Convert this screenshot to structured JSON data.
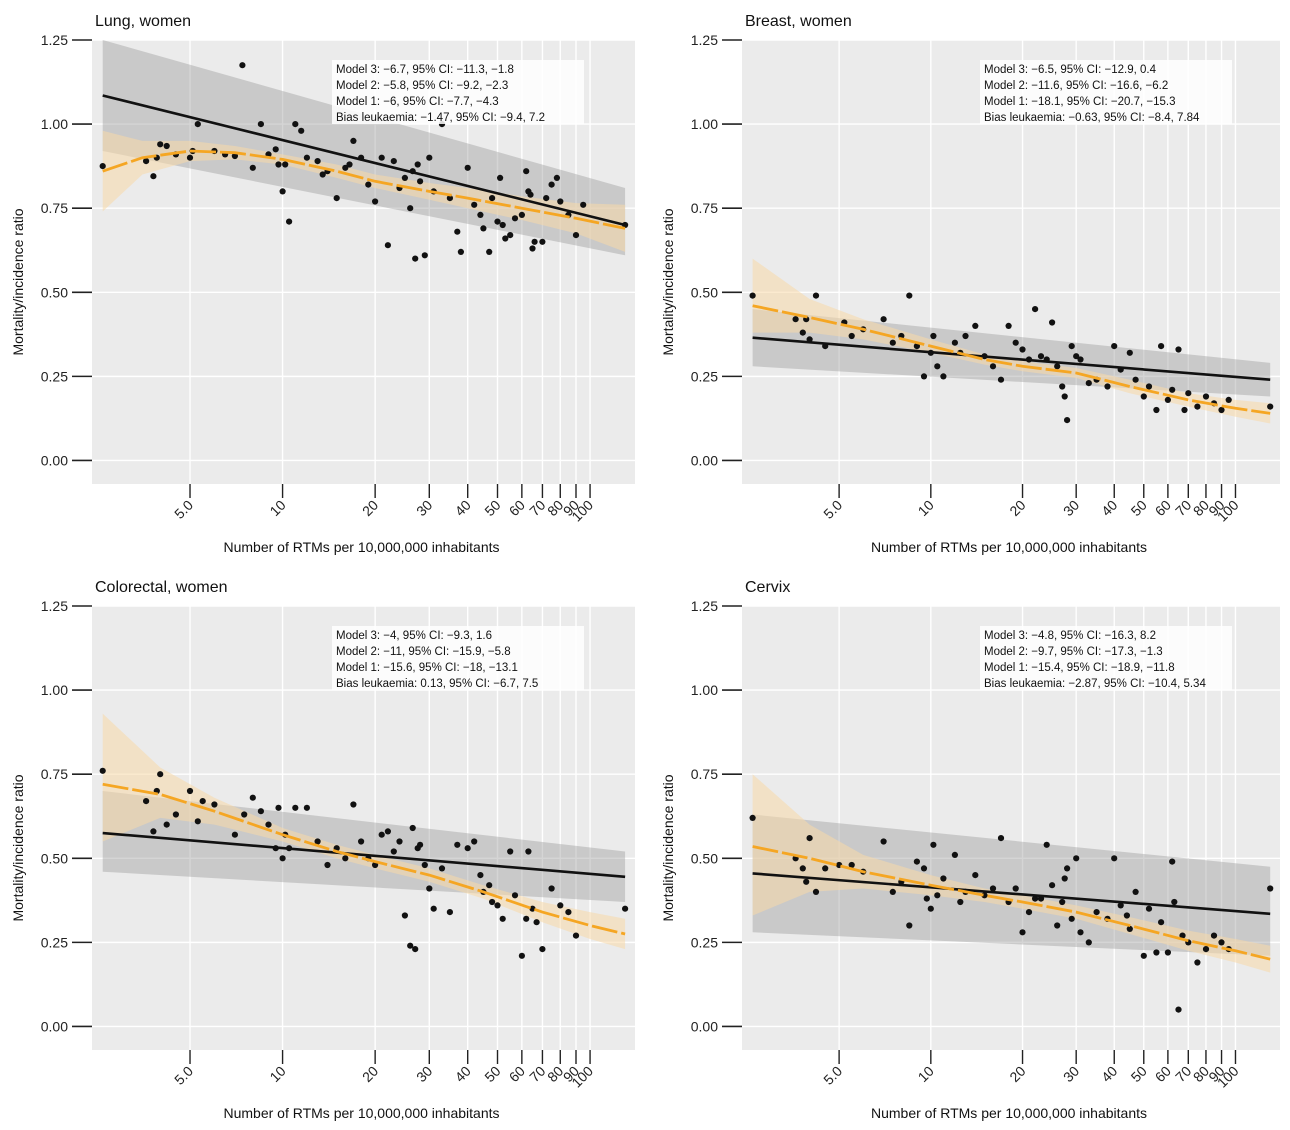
{
  "chart_data": [
    {
      "type": "scatter",
      "title": "Lung, women",
      "xlabel": "Number of RTMs per 10,000,000 inhabitants",
      "ylabel": "Mortality/incidence ratio",
      "x_scale": "log",
      "xlim": [
        2.4,
        140
      ],
      "ylim": [
        -0.07,
        1.25
      ],
      "x_ticks": [
        5,
        10,
        20,
        30,
        40,
        50,
        60,
        70,
        80,
        90,
        100
      ],
      "x_tick_labels": [
        "5.0",
        "10",
        "20",
        "30",
        "40",
        "50",
        "60",
        "70",
        "80",
        "90",
        "100"
      ],
      "y_ticks": [
        0,
        0.25,
        0.5,
        0.75,
        1.0,
        1.25
      ],
      "y_tick_labels": [
        "0.00",
        "0.25",
        "0.50",
        "0.75",
        "1.00",
        "1.25"
      ],
      "grid": true,
      "annotations": [
        "Model 3: −6.7, 95% CI: −11.3, −1.8",
        "Model 2: −5.8, 95% CI: −9.2, −2.3",
        "Model 1: −6, 95% CI: −7.7, −4.3",
        "Bias leukaemia: −1.47, 95% CI: −9.4, 7.2"
      ],
      "linear_fit": {
        "color": "#111111",
        "x": [
          2.6,
          130
        ],
        "y": [
          1.085,
          0.7
        ],
        "ci_lower": [
          0.92,
          0.61
        ],
        "ci_upper": [
          1.25,
          0.81
        ]
      },
      "smooth_fit": {
        "color": "#f5a623",
        "dashed": true,
        "x": [
          2.6,
          3.5,
          5.0,
          7.0,
          10,
          15,
          20,
          30,
          40,
          60,
          90,
          130
        ],
        "y": [
          0.86,
          0.9,
          0.92,
          0.915,
          0.895,
          0.86,
          0.83,
          0.8,
          0.78,
          0.75,
          0.72,
          0.69
        ],
        "ci_lower": [
          0.74,
          0.85,
          0.89,
          0.895,
          0.88,
          0.84,
          0.81,
          0.775,
          0.75,
          0.715,
          0.675,
          0.62
        ],
        "ci_upper": [
          0.98,
          0.95,
          0.95,
          0.935,
          0.91,
          0.88,
          0.85,
          0.825,
          0.81,
          0.785,
          0.765,
          0.76
        ]
      },
      "points": {
        "x": [
          2.6,
          3.6,
          3.8,
          3.9,
          4.0,
          4.2,
          4.5,
          5.0,
          5.1,
          5.3,
          6.0,
          6.5,
          7.0,
          7.4,
          8.0,
          8.5,
          9.0,
          9.5,
          9.7,
          10,
          10.2,
          10.5,
          11,
          11.5,
          12,
          13,
          13.5,
          14,
          15,
          16,
          16.5,
          17,
          18,
          19,
          20,
          21,
          22,
          23,
          24,
          25,
          26,
          26.5,
          27,
          27.5,
          28,
          29,
          30,
          31,
          33,
          35,
          37,
          38,
          40,
          42,
          44,
          45,
          47,
          48,
          50,
          51,
          52,
          53,
          55,
          57,
          60,
          62,
          63,
          64,
          65,
          66,
          70,
          72,
          75,
          78,
          80,
          85,
          90,
          95,
          130
        ],
        "y": [
          0.875,
          0.89,
          0.845,
          0.9,
          0.94,
          0.935,
          0.91,
          0.9,
          0.92,
          1.0,
          0.92,
          0.91,
          0.905,
          1.175,
          0.87,
          1.0,
          0.91,
          0.925,
          0.88,
          0.8,
          0.88,
          0.71,
          1.0,
          0.98,
          0.9,
          0.89,
          0.85,
          0.86,
          0.78,
          0.87,
          0.88,
          0.95,
          0.9,
          0.82,
          0.77,
          0.9,
          0.64,
          0.89,
          0.81,
          0.84,
          0.75,
          0.86,
          0.6,
          0.88,
          0.83,
          0.61,
          0.9,
          0.8,
          1.0,
          0.78,
          0.68,
          0.62,
          0.87,
          0.76,
          0.73,
          0.69,
          0.62,
          0.78,
          0.71,
          0.84,
          0.7,
          0.66,
          0.67,
          0.72,
          0.73,
          0.86,
          0.8,
          0.79,
          0.63,
          0.65,
          0.65,
          0.78,
          0.82,
          0.84,
          0.77,
          0.73,
          0.67,
          0.76,
          0.7
        ]
      }
    },
    {
      "type": "scatter",
      "title": "Breast, women",
      "xlabel": "Number of RTMs per 10,000,000 inhabitants",
      "ylabel": "Mortality/incidence ratio",
      "x_scale": "log",
      "xlim": [
        2.4,
        140
      ],
      "ylim": [
        -0.07,
        1.25
      ],
      "x_ticks": [
        5,
        10,
        20,
        30,
        40,
        50,
        60,
        70,
        80,
        90,
        100
      ],
      "x_tick_labels": [
        "5.0",
        "10",
        "20",
        "30",
        "40",
        "50",
        "60",
        "70",
        "80",
        "90",
        "100"
      ],
      "y_ticks": [
        0,
        0.25,
        0.5,
        0.75,
        1.0,
        1.25
      ],
      "y_tick_labels": [
        "0.00",
        "0.25",
        "0.50",
        "0.75",
        "1.00",
        "1.25"
      ],
      "grid": true,
      "annotations": [
        "Model 3: −6.5, 95% CI: −12.9, 0.4",
        "Model 2: −11.6, 95% CI: −16.6, −6.2",
        "Model 1: −18.1, 95% CI: −20.7, −15.3",
        "Bias leukaemia: −0.63, 95% CI: −8.4, 7.84"
      ],
      "linear_fit": {
        "color": "#111111",
        "x": [
          2.6,
          130
        ],
        "y": [
          0.365,
          0.24
        ],
        "ci_lower": [
          0.28,
          0.19
        ],
        "ci_upper": [
          0.45,
          0.29
        ]
      },
      "smooth_fit": {
        "color": "#f5a623",
        "dashed": true,
        "x": [
          2.6,
          4.0,
          6.0,
          10,
          15,
          20,
          30,
          45,
          70,
          100,
          130
        ],
        "y": [
          0.46,
          0.425,
          0.39,
          0.34,
          0.3,
          0.28,
          0.26,
          0.22,
          0.18,
          0.155,
          0.14
        ],
        "ci_lower": [
          0.38,
          0.38,
          0.36,
          0.32,
          0.285,
          0.265,
          0.245,
          0.2,
          0.16,
          0.13,
          0.11
        ],
        "ci_upper": [
          0.6,
          0.48,
          0.42,
          0.36,
          0.315,
          0.295,
          0.275,
          0.24,
          0.2,
          0.18,
          0.17
        ]
      },
      "points": {
        "x": [
          2.6,
          3.6,
          3.8,
          3.9,
          4.0,
          4.2,
          4.5,
          5.2,
          5.5,
          6.0,
          7.0,
          7.5,
          8.0,
          8.5,
          9.0,
          9.5,
          10,
          10.2,
          10.5,
          11,
          12,
          12.5,
          13,
          14,
          15,
          16,
          17,
          18,
          19,
          20,
          21,
          22,
          23,
          24,
          25,
          26,
          27,
          27.5,
          28,
          29,
          30,
          31,
          33,
          35,
          38,
          40,
          42,
          45,
          47,
          50,
          52,
          55,
          57,
          60,
          62,
          65,
          68,
          70,
          75,
          80,
          85,
          90,
          95,
          130
        ],
        "y": [
          0.49,
          0.42,
          0.38,
          0.42,
          0.36,
          0.49,
          0.34,
          0.41,
          0.37,
          0.39,
          0.42,
          0.35,
          0.37,
          0.49,
          0.34,
          0.25,
          0.32,
          0.37,
          0.28,
          0.25,
          0.35,
          0.32,
          0.37,
          0.4,
          0.31,
          0.28,
          0.24,
          0.4,
          0.35,
          0.33,
          0.3,
          0.45,
          0.31,
          0.3,
          0.41,
          0.28,
          0.22,
          0.19,
          0.12,
          0.34,
          0.31,
          0.3,
          0.23,
          0.24,
          0.22,
          0.34,
          0.27,
          0.32,
          0.24,
          0.19,
          0.22,
          0.15,
          0.34,
          0.18,
          0.21,
          0.33,
          0.15,
          0.2,
          0.16,
          0.19,
          0.17,
          0.15,
          0.18,
          0.16
        ]
      }
    },
    {
      "type": "scatter",
      "title": "Colorectal, women",
      "xlabel": "Number of RTMs per 10,000,000 inhabitants",
      "ylabel": "Mortality/incidence ratio",
      "x_scale": "log",
      "xlim": [
        2.4,
        140
      ],
      "ylim": [
        -0.07,
        1.25
      ],
      "x_ticks": [
        5,
        10,
        20,
        30,
        40,
        50,
        60,
        70,
        80,
        90,
        100
      ],
      "x_tick_labels": [
        "5.0",
        "10",
        "20",
        "30",
        "40",
        "50",
        "60",
        "70",
        "80",
        "90",
        "100"
      ],
      "y_ticks": [
        0,
        0.25,
        0.5,
        0.75,
        1.0,
        1.25
      ],
      "y_tick_labels": [
        "0.00",
        "0.25",
        "0.50",
        "0.75",
        "1.00",
        "1.25"
      ],
      "grid": true,
      "annotations": [
        "Model 3: −4, 95% CI: −9.3, 1.6",
        "Model 2: −11, 95% CI: −15.9, −5.8",
        "Model 1: −15.6, 95% CI: −18, −13.1",
        "Bias leukaemia: 0.13, 95% CI: −6.7, 7.5"
      ],
      "linear_fit": {
        "color": "#111111",
        "x": [
          2.6,
          130
        ],
        "y": [
          0.575,
          0.445
        ],
        "ci_lower": [
          0.46,
          0.37
        ],
        "ci_upper": [
          0.7,
          0.52
        ]
      },
      "smooth_fit": {
        "color": "#f5a623",
        "dashed": true,
        "x": [
          2.6,
          4.0,
          6.0,
          10,
          15,
          20,
          30,
          45,
          70,
          100,
          130
        ],
        "y": [
          0.72,
          0.69,
          0.64,
          0.57,
          0.52,
          0.49,
          0.45,
          0.4,
          0.34,
          0.3,
          0.275
        ],
        "ci_lower": [
          0.55,
          0.62,
          0.6,
          0.55,
          0.5,
          0.47,
          0.43,
          0.38,
          0.31,
          0.26,
          0.23
        ],
        "ci_upper": [
          0.93,
          0.77,
          0.68,
          0.59,
          0.54,
          0.51,
          0.47,
          0.42,
          0.37,
          0.34,
          0.32
        ]
      },
      "points": {
        "x": [
          2.6,
          3.6,
          3.8,
          3.9,
          4.0,
          4.2,
          4.5,
          5.0,
          5.3,
          5.5,
          6.0,
          7.0,
          7.5,
          8.0,
          8.5,
          9.0,
          9.5,
          9.7,
          10,
          10.2,
          10.5,
          11,
          12,
          13,
          14,
          15,
          16,
          17,
          18,
          19,
          20,
          21,
          22,
          23,
          24,
          25,
          26,
          26.5,
          27,
          27.5,
          28,
          29,
          30,
          31,
          33,
          35,
          37,
          40,
          42,
          44,
          45,
          47,
          48,
          50,
          52,
          55,
          57,
          60,
          62,
          63,
          65,
          67,
          70,
          75,
          80,
          85,
          90,
          130
        ],
        "y": [
          0.76,
          0.67,
          0.58,
          0.7,
          0.75,
          0.6,
          0.63,
          0.7,
          0.61,
          0.67,
          0.66,
          0.57,
          0.63,
          0.68,
          0.64,
          0.6,
          0.53,
          0.65,
          0.5,
          0.57,
          0.53,
          0.65,
          0.65,
          0.55,
          0.48,
          0.53,
          0.5,
          0.66,
          0.55,
          0.5,
          0.48,
          0.57,
          0.58,
          0.52,
          0.55,
          0.33,
          0.24,
          0.59,
          0.23,
          0.53,
          0.54,
          0.48,
          0.41,
          0.35,
          0.47,
          0.34,
          0.54,
          0.53,
          0.55,
          0.45,
          0.4,
          0.42,
          0.37,
          0.36,
          0.32,
          0.52,
          0.39,
          0.21,
          0.32,
          0.52,
          0.35,
          0.31,
          0.23,
          0.41,
          0.36,
          0.34,
          0.27,
          0.35
        ]
      }
    },
    {
      "type": "scatter",
      "title": "Cervix",
      "xlabel": "Number of RTMs per 10,000,000 inhabitants",
      "ylabel": "Mortality/incidence ratio",
      "x_scale": "log",
      "xlim": [
        2.4,
        140
      ],
      "ylim": [
        -0.07,
        1.25
      ],
      "x_ticks": [
        5,
        10,
        20,
        30,
        40,
        50,
        60,
        70,
        80,
        90,
        100
      ],
      "x_tick_labels": [
        "5.0",
        "10",
        "20",
        "30",
        "40",
        "50",
        "60",
        "70",
        "80",
        "90",
        "100"
      ],
      "y_ticks": [
        0,
        0.25,
        0.5,
        0.75,
        1.0,
        1.25
      ],
      "y_tick_labels": [
        "0.00",
        "0.25",
        "0.50",
        "0.75",
        "1.00",
        "1.25"
      ],
      "grid": true,
      "annotations": [
        "Model 3: −4.8, 95% CI: −16.3, 8.2",
        "Model 2: −9.7, 95% CI: −17.3, −1.3",
        "Model 1: −15.4, 95% CI: −18.9, −11.8",
        "Bias leukaemia: −2.87, 95% CI: −10.4, 5.34"
      ],
      "linear_fit": {
        "color": "#111111",
        "x": [
          2.6,
          130
        ],
        "y": [
          0.455,
          0.335
        ],
        "ci_lower": [
          0.28,
          0.21
        ],
        "ci_upper": [
          0.63,
          0.475
        ]
      },
      "smooth_fit": {
        "color": "#f5a623",
        "dashed": true,
        "x": [
          2.6,
          4.0,
          6.0,
          10,
          15,
          20,
          30,
          45,
          70,
          100,
          130
        ],
        "y": [
          0.535,
          0.5,
          0.46,
          0.42,
          0.39,
          0.37,
          0.34,
          0.3,
          0.255,
          0.225,
          0.2
        ],
        "ci_lower": [
          0.33,
          0.4,
          0.41,
          0.39,
          0.37,
          0.35,
          0.32,
          0.275,
          0.225,
          0.19,
          0.16
        ],
        "ci_upper": [
          0.75,
          0.6,
          0.51,
          0.45,
          0.41,
          0.39,
          0.36,
          0.325,
          0.285,
          0.26,
          0.24
        ]
      },
      "points": {
        "x": [
          2.6,
          3.6,
          3.8,
          3.9,
          4.0,
          4.2,
          4.5,
          5.0,
          5.5,
          6.0,
          7.0,
          7.5,
          8.0,
          8.5,
          9.0,
          9.5,
          9.7,
          10,
          10.2,
          10.5,
          11,
          12,
          12.5,
          13,
          14,
          15,
          16,
          17,
          18,
          19,
          20,
          21,
          22,
          23,
          24,
          25,
          26,
          27,
          27.5,
          28,
          29,
          30,
          31,
          33,
          35,
          38,
          40,
          42,
          44,
          45,
          47,
          50,
          52,
          55,
          57,
          60,
          62,
          63,
          65,
          67,
          70,
          75,
          80,
          85,
          90,
          95,
          130
        ],
        "y": [
          0.62,
          0.5,
          0.47,
          0.43,
          0.56,
          0.4,
          0.47,
          0.48,
          0.48,
          0.46,
          0.55,
          0.4,
          0.43,
          0.3,
          0.49,
          0.47,
          0.38,
          0.35,
          0.54,
          0.39,
          0.44,
          0.51,
          0.37,
          0.4,
          0.45,
          0.39,
          0.41,
          0.56,
          0.37,
          0.41,
          0.28,
          0.34,
          0.38,
          0.38,
          0.54,
          0.42,
          0.3,
          0.37,
          0.44,
          0.47,
          0.32,
          0.5,
          0.28,
          0.25,
          0.34,
          0.32,
          0.5,
          0.36,
          0.33,
          0.29,
          0.4,
          0.21,
          0.35,
          0.22,
          0.31,
          0.22,
          0.49,
          0.37,
          0.05,
          0.27,
          0.25,
          0.19,
          0.23,
          0.27,
          0.25,
          0.23,
          0.41
        ]
      }
    }
  ]
}
